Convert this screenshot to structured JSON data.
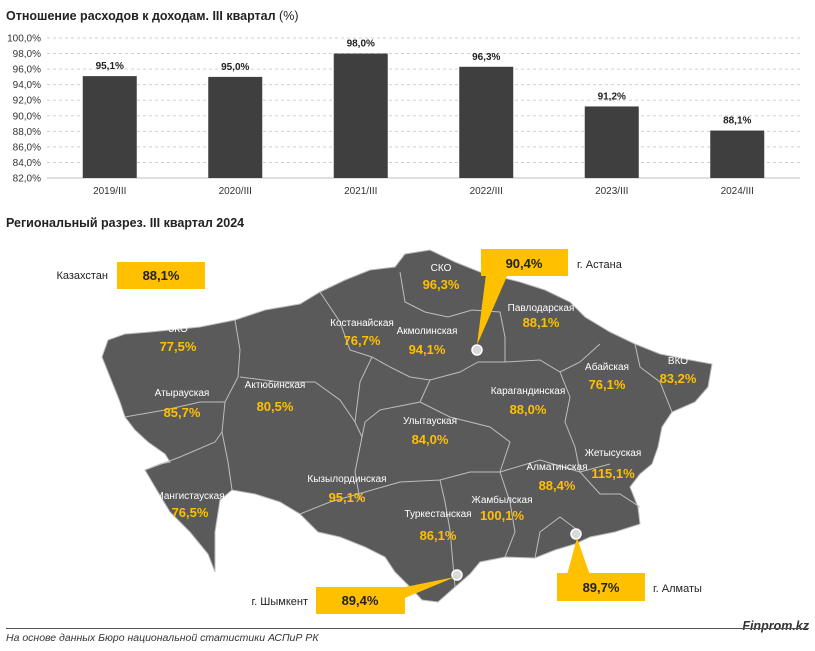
{
  "chart_data": {
    "type": "bar",
    "title": "Отношение расходов к доходам. III квартал",
    "title_unit": "(%)",
    "categories": [
      "2019/III",
      "2020/III",
      "2021/III",
      "2022/III",
      "2023/III",
      "2024/III"
    ],
    "values": [
      95.1,
      95.0,
      98.0,
      96.3,
      91.2,
      88.1
    ],
    "value_labels": [
      "95,1%",
      "95,0%",
      "98,0%",
      "96,3%",
      "91,2%",
      "88,1%"
    ],
    "ylim": [
      82,
      100
    ],
    "yticks": [
      "82,0%",
      "84,0%",
      "86,0%",
      "88,0%",
      "90,0%",
      "92,0%",
      "94,0%",
      "96,0%",
      "98,0%",
      "100,0%"
    ],
    "grid": true,
    "bar_color": "#3f3f3f"
  },
  "map_section": {
    "title": "Региональный разрез. III квартал 2024",
    "map_color": "#5a5a5a",
    "accent_color": "#ffc000",
    "national": {
      "name": "Казахстан",
      "value": "88,1%"
    },
    "regions": [
      {
        "name": "СКО",
        "value": "96,3%"
      },
      {
        "name": "Костанайская",
        "value": "76,7%"
      },
      {
        "name": "Акмолинская",
        "value": "94,1%"
      },
      {
        "name": "Павлодарская",
        "value": "88,1%"
      },
      {
        "name": "ЗКО",
        "value": "77,5%"
      },
      {
        "name": "Актюбинская",
        "value": "80,5%"
      },
      {
        "name": "Атырауская",
        "value": "85,7%"
      },
      {
        "name": "Абайская",
        "value": "76,1%"
      },
      {
        "name": "ВКО",
        "value": "83,2%"
      },
      {
        "name": "Карагандинская",
        "value": "88,0%"
      },
      {
        "name": "Улытауская",
        "value": "84,0%"
      },
      {
        "name": "Жетысуская",
        "value": "115,1%"
      },
      {
        "name": "Алматинская",
        "value": "88,4%"
      },
      {
        "name": "Кызылординская",
        "value": "95,1%"
      },
      {
        "name": "Мангистауская",
        "value": "76,5%"
      },
      {
        "name": "Жамбылская",
        "value": "100,1%"
      },
      {
        "name": "Туркестанская",
        "value": "86,1%"
      }
    ],
    "cities": [
      {
        "name": "г. Астана",
        "value": "90,4%"
      },
      {
        "name": "г. Шымкент",
        "value": "89,4%"
      },
      {
        "name": "г. Алматы",
        "value": "89,7%"
      }
    ]
  },
  "footer": {
    "source": "На основе данных Бюро национальной статистики АСПиР РК",
    "brand": "Finprom.kz"
  }
}
